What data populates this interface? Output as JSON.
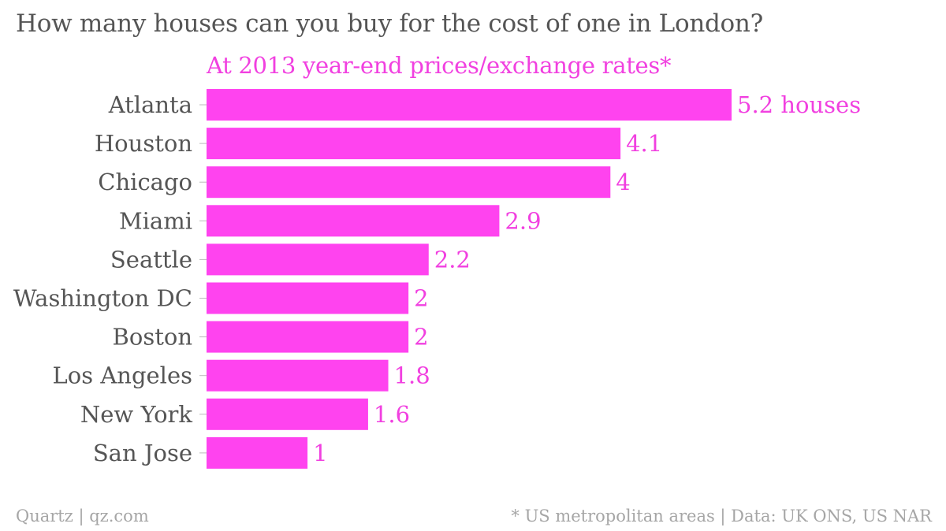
{
  "title": "How many houses can you buy for the cost of one in London?",
  "subtitle": "At 2013 year-end prices/exchange rates*",
  "footer": {
    "source": "Quartz | qz.com",
    "note": "* US metropolitan areas | Data: UK ONS, US NAR"
  },
  "colors": {
    "bar": "#ff43ef",
    "value_label": "#f140e0",
    "text": "#555555",
    "footer": "#a6a6a6"
  },
  "chart_data": {
    "type": "bar",
    "orientation": "horizontal",
    "categories": [
      "Atlanta",
      "Houston",
      "Chicago",
      "Miami",
      "Seattle",
      "Washington DC",
      "Boston",
      "Los Angeles",
      "New York",
      "San Jose"
    ],
    "values": [
      5.2,
      4.1,
      4,
      2.9,
      2.2,
      2,
      2,
      1.8,
      1.6,
      1
    ],
    "value_labels": [
      "5.2 houses",
      "4.1",
      "4",
      "2.9",
      "2.2",
      "2",
      "2",
      "1.8",
      "1.6",
      "1"
    ],
    "title": "How many houses can you buy for the cost of one in London?",
    "subtitle": "At 2013 year-end prices/exchange rates*",
    "xlim": [
      0,
      5.2
    ],
    "grid": false,
    "legend": "none"
  }
}
